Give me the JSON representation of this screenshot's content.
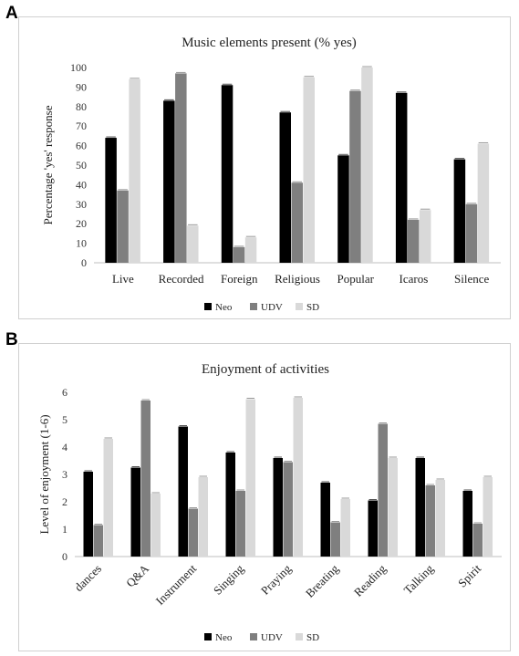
{
  "panels": {
    "a_label": "A",
    "b_label": "B"
  },
  "colors": {
    "Neo": "#000000",
    "UDV": "#7f7f7f",
    "SD": "#d9d9d9",
    "axis": "#bfbfbf"
  },
  "chart_data": [
    {
      "type": "bar",
      "title": "Music elements present (% yes)",
      "xlabel": "",
      "ylabel": "Percentage 'yes' response",
      "ylim": [
        0,
        100
      ],
      "yticks": [
        0,
        10,
        20,
        30,
        40,
        50,
        60,
        70,
        80,
        90,
        100
      ],
      "grid": false,
      "legend": "bottom",
      "categories": [
        "Live",
        "Recorded",
        "Foreign",
        "Religious",
        "Popular",
        "Icaros",
        "Silence"
      ],
      "series": [
        {
          "name": "Neo",
          "values": [
            64,
            83,
            91,
            77,
            55,
            87,
            53
          ]
        },
        {
          "name": "UDV",
          "values": [
            37,
            97,
            8,
            41,
            88,
            22,
            30
          ]
        },
        {
          "name": "SD",
          "values": [
            94,
            19,
            13,
            95,
            100,
            27,
            61
          ]
        }
      ]
    },
    {
      "type": "bar",
      "title": "Enjoyment of activities",
      "xlabel": "",
      "ylabel": "Level of enjoyment (1-6)",
      "ylim": [
        0,
        6
      ],
      "yticks": [
        0,
        1,
        2,
        3,
        4,
        5,
        6
      ],
      "grid": false,
      "legend": "bottom",
      "categories": [
        "dances",
        "Q&A",
        "Instrument",
        "Singing",
        "Praying",
        "Breating",
        "Reading",
        "Talking",
        "Spirit"
      ],
      "series": [
        {
          "name": "Neo",
          "values": [
            3.1,
            3.25,
            4.75,
            3.8,
            3.6,
            2.7,
            2.05,
            3.6,
            2.4
          ]
        },
        {
          "name": "UDV",
          "values": [
            1.15,
            5.7,
            1.75,
            2.4,
            3.45,
            1.25,
            4.85,
            2.6,
            1.2
          ]
        },
        {
          "name": "SD",
          "values": [
            4.3,
            2.3,
            2.9,
            5.75,
            5.8,
            2.1,
            3.6,
            2.8,
            2.9
          ]
        }
      ]
    }
  ]
}
